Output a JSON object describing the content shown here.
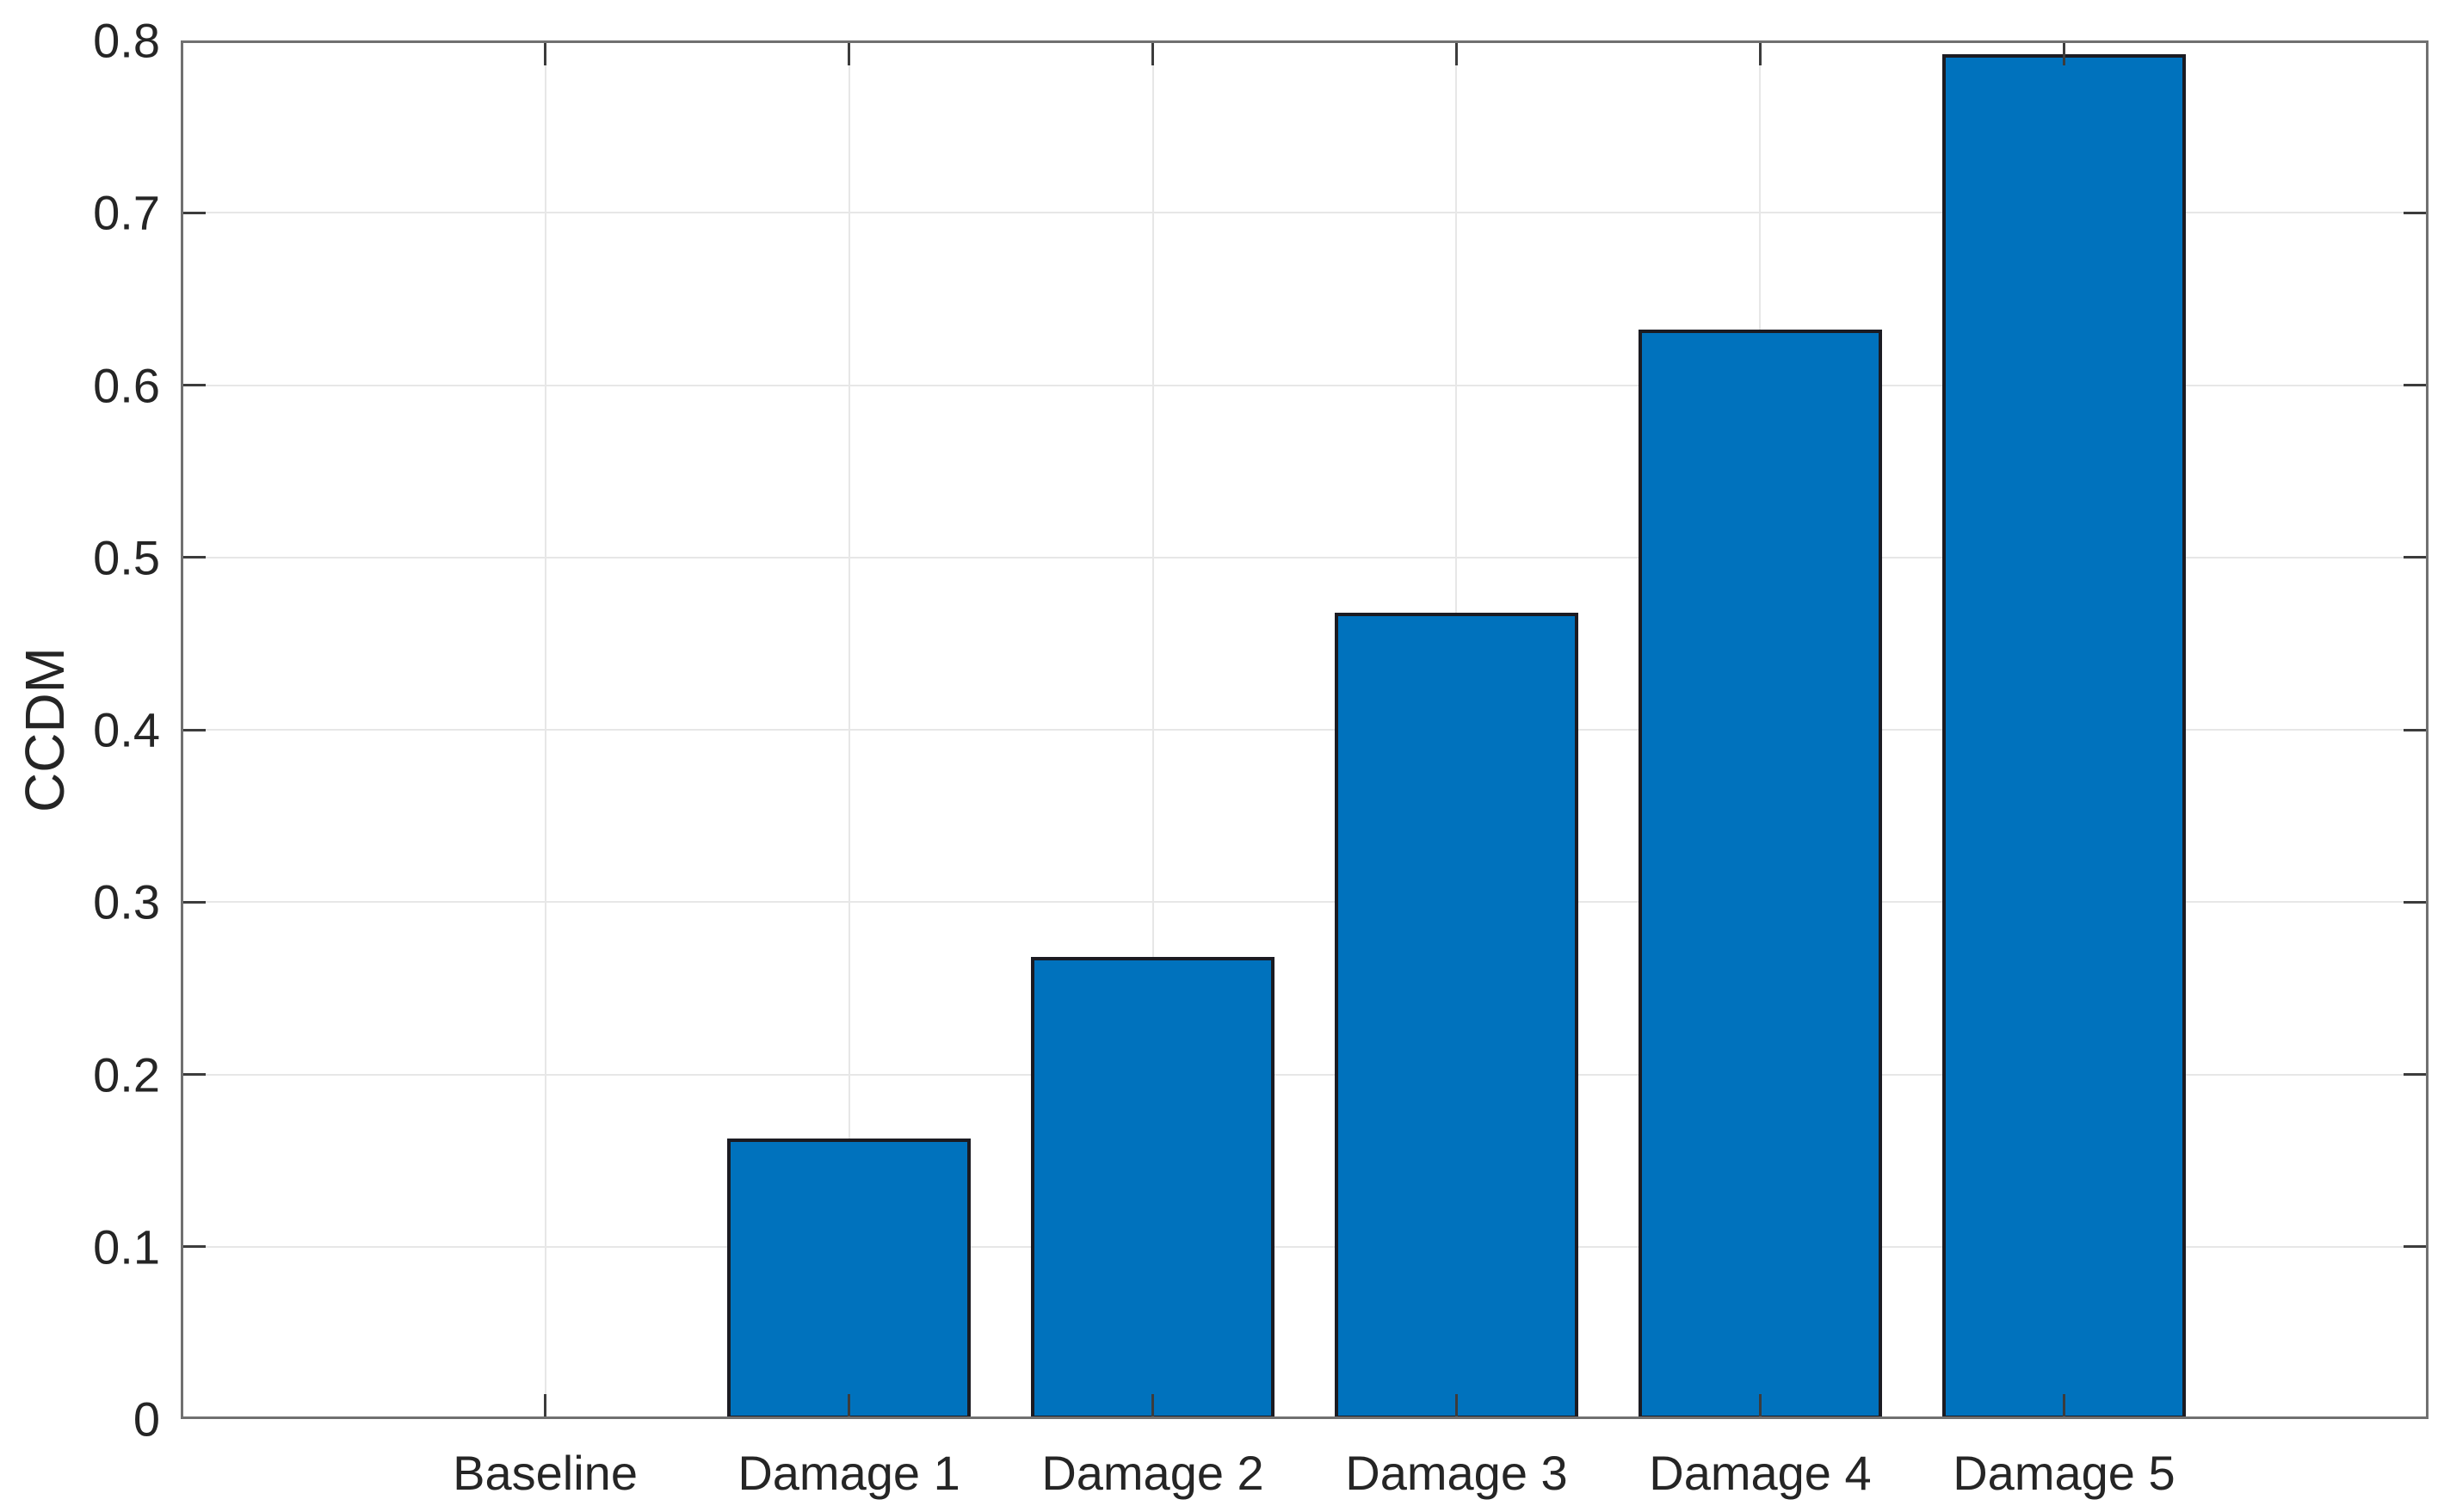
{
  "chart_data": {
    "type": "bar",
    "title": "",
    "categories": [
      "Baseline",
      "Damage 1",
      "Damage 2",
      "Damage 3",
      "Damage 4",
      "Damage 5"
    ],
    "values": [
      0,
      0.163,
      0.268,
      0.468,
      0.632,
      0.792
    ],
    "xlabel": "",
    "ylabel": "CCDM",
    "ylim": [
      0,
      0.8
    ],
    "yticks": [
      0,
      0.1,
      0.2,
      0.3,
      0.4,
      0.5,
      0.6,
      0.7,
      0.8
    ],
    "ytick_labels": [
      "0",
      "0.1",
      "0.2",
      "0.3",
      "0.4",
      "0.5",
      "0.6",
      "0.7",
      "0.8"
    ],
    "grid": "both",
    "legend": "none",
    "bar_color": "#0072BD",
    "bar_edge_color": "#1b1b22",
    "axis_box_color": "#707070",
    "tick_color": "#3c3c3c",
    "grid_color": "#e7e7e7",
    "text_color": "#252525",
    "background": "#ffffff"
  }
}
